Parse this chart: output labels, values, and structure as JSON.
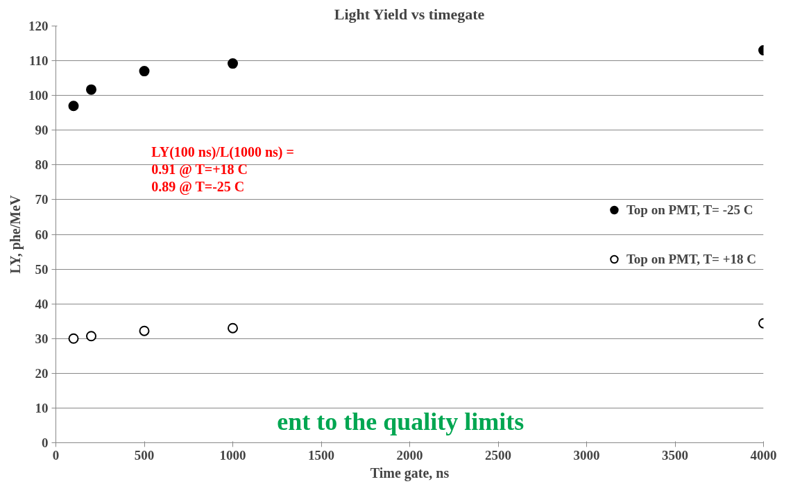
{
  "chart_data": {
    "type": "scatter",
    "title": "Light Yield vs timegate",
    "xlabel": "Time gate, ns",
    "ylabel": "LY, phe/MeV",
    "x": [
      100,
      200,
      500,
      1000,
      4000
    ],
    "series": [
      {
        "name": "Top on PMT, T= -25 C",
        "color": "#000000",
        "values": [
          97,
          101.7,
          107,
          109.2,
          113
        ]
      },
      {
        "name": "Top on PMT, T= +18 C",
        "color": "#ffffff",
        "values": [
          30,
          30.7,
          32.2,
          33,
          34.4
        ]
      }
    ],
    "annotations": [
      "LY(100 ns)/L(1000 ns) =\n0.91 @ T=+18 C\n0.89 @ T=-25 C",
      "ent to the quality limits"
    ],
    "xlim": [
      0,
      4000
    ],
    "xticks": [
      0,
      500,
      1000,
      1500,
      2000,
      2500,
      3000,
      3500,
      4000
    ],
    "ylim": [
      0,
      120
    ],
    "yticks": [
      0,
      10,
      20,
      30,
      40,
      50,
      60,
      70,
      80,
      90,
      100,
      110,
      120
    ],
    "grid": "y",
    "legend": "right",
    "marker": "circle"
  }
}
